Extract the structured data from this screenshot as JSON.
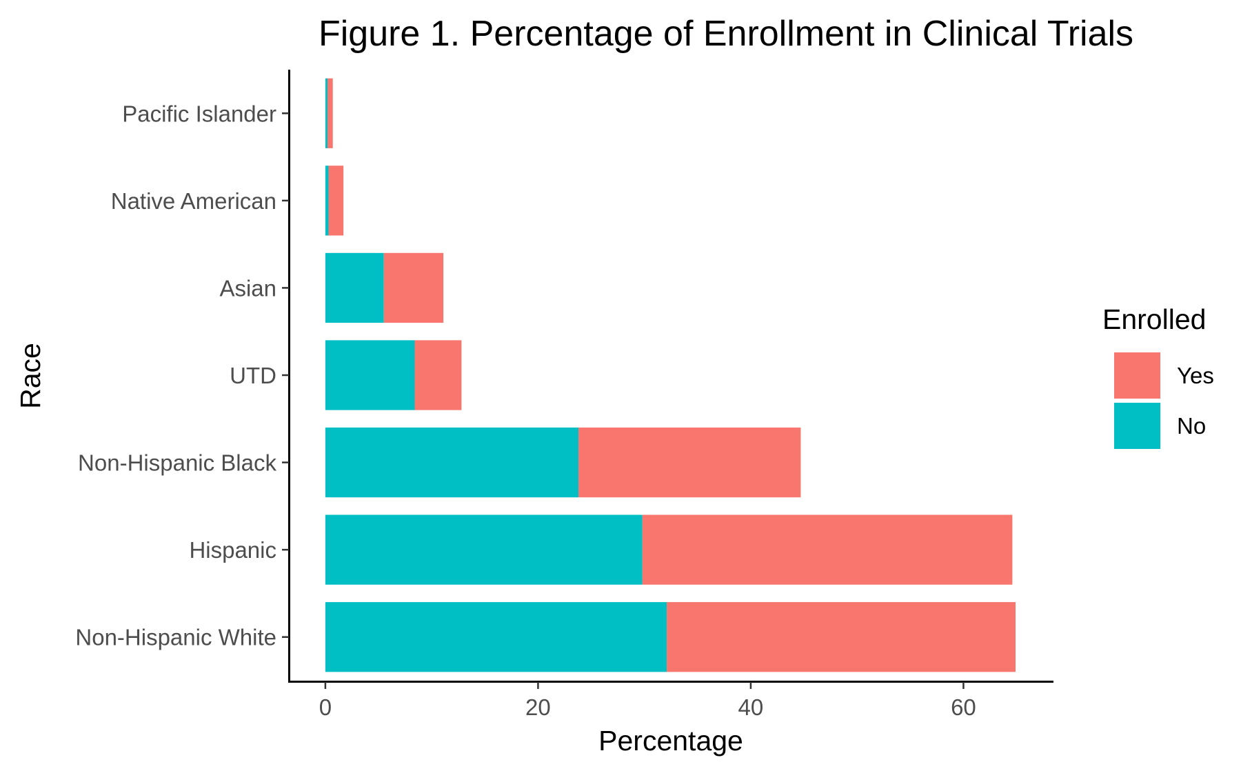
{
  "chart_data": {
    "type": "bar",
    "orientation": "horizontal",
    "stacked": true,
    "title": "Figure 1. Percentage of Enrollment in Clinical Trials",
    "xlabel": "Percentage",
    "ylabel": "Race",
    "xlim": [
      -3.3,
      68.4
    ],
    "xticks": [
      0,
      20,
      40,
      60
    ],
    "categories": [
      "Pacific Islander",
      "Native American",
      "Asian",
      "UTD",
      "Non-Hispanic Black",
      "Hispanic",
      "Non-Hispanic White"
    ],
    "series": [
      {
        "name": "No",
        "color": "#00BFC4",
        "values": [
          0.2,
          0.3,
          5.5,
          8.4,
          23.8,
          29.8,
          32.1
        ]
      },
      {
        "name": "Yes",
        "color": "#F8766D",
        "values": [
          0.5,
          1.4,
          5.6,
          4.4,
          20.9,
          34.8,
          32.8
        ]
      }
    ],
    "legend": {
      "title": "Enrolled",
      "position": "right",
      "entries": [
        {
          "label": "Yes",
          "color": "#F8766D"
        },
        {
          "label": "No",
          "color": "#00BFC4"
        }
      ]
    },
    "grid": false
  }
}
